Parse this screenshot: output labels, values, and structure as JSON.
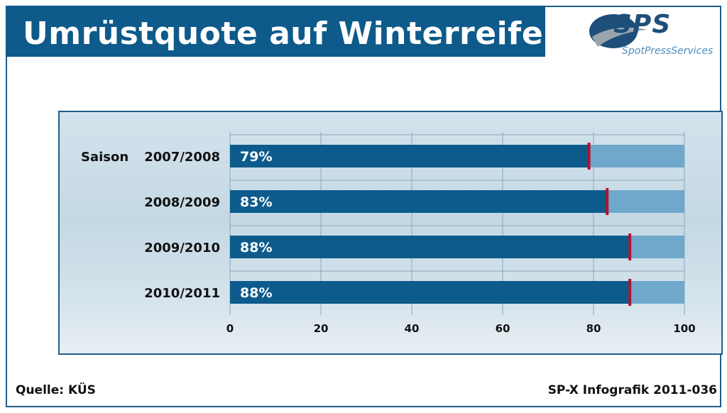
{
  "header": {
    "title": "Umrüstquote auf Winterreifen"
  },
  "logo": {
    "brand": "SPS",
    "subtitle": "SpotPressServices"
  },
  "footer": {
    "source": "Quelle: KÜS",
    "credit": "SP-X Infografik 2011-036"
  },
  "colors": {
    "title_bg": "#0e5a8a",
    "bar_fill": "#0c5b8c",
    "bar_remainder": "#6fa8cb",
    "marker": "#b3122d"
  },
  "chart_data": {
    "type": "bar",
    "orientation": "horizontal",
    "title": "",
    "category_axis_label": "Saison",
    "categories": [
      "2007/2008",
      "2008/2009",
      "2009/2010",
      "2010/2011"
    ],
    "values": [
      79,
      83,
      88,
      88
    ],
    "value_labels": [
      "79%",
      "83%",
      "88%",
      "88%"
    ],
    "xlim": [
      0,
      100
    ],
    "xticks": [
      0,
      20,
      40,
      60,
      80,
      100
    ],
    "grid": true
  }
}
